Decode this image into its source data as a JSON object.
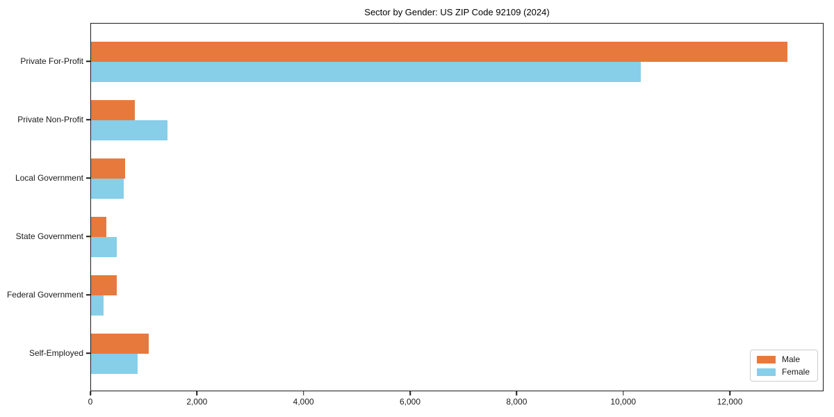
{
  "chart_data": {
    "type": "bar",
    "orientation": "horizontal",
    "title": "Sector by Gender: US ZIP Code 92109 (2024)",
    "categories": [
      "Private For-Profit",
      "Private Non-Profit",
      "Local Government",
      "State Government",
      "Federal Government",
      "Self-Employed"
    ],
    "series": [
      {
        "name": "Male",
        "color": "#e8793c",
        "values": [
          13100,
          820,
          640,
          290,
          490,
          1085
        ]
      },
      {
        "name": "Female",
        "color": "#87cee9",
        "values": [
          10340,
          1435,
          610,
          480,
          235,
          870
        ]
      }
    ],
    "xlabel": "",
    "ylabel": "",
    "xlim": [
      0,
      13760
    ],
    "x_ticks": [
      0,
      2000,
      4000,
      6000,
      8000,
      10000,
      12000
    ],
    "x_tick_labels": [
      "0",
      "2,000",
      "4,000",
      "6,000",
      "8,000",
      "10,000",
      "12,000"
    ],
    "grid": false,
    "legend_position": "lower right",
    "colors": {
      "axis": "#1a1a1a",
      "text": "#1a1a1a",
      "legend_border": "#cccccc",
      "background": "#ffffff"
    }
  }
}
